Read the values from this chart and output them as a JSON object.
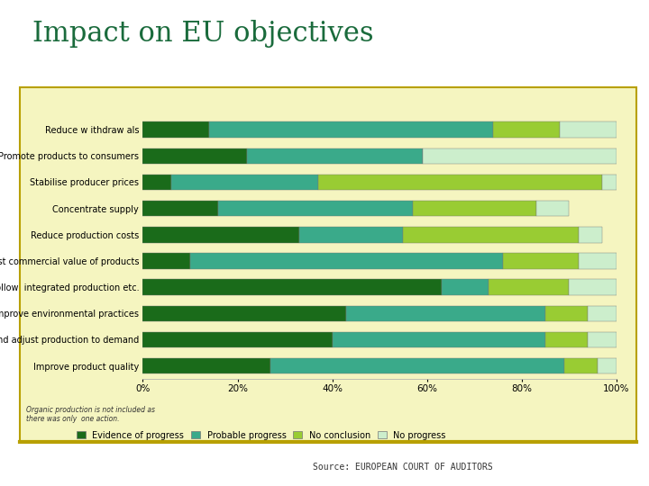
{
  "title": "Impact on EU objectives",
  "title_color": "#1a6b3c",
  "title_fontsize": 22,
  "source_text": "Source: EUROPEAN COURT OF AUDITORS",
  "chart_bg_color": "#f5f5c0",
  "outer_bg_color": "#ffffff",
  "border_color": "#b8a000",
  "categories": [
    "Reduce w ithdraw als",
    "Promote products to consumers",
    "Stabilise producer prices",
    "Concentrate supply",
    "Reduce production costs",
    "Boost commercial value of products",
    "Follow  integrated production etc.",
    "Improve environmental practices",
    "Plan and adjust production to demand",
    "Improve product quality"
  ],
  "series": {
    "Evidence of progress": {
      "color": "#1a6b1a",
      "values": [
        14,
        22,
        6,
        16,
        33,
        10,
        63,
        43,
        40,
        27
      ]
    },
    "Probable progress": {
      "color": "#3aaa8a",
      "values": [
        60,
        37,
        31,
        41,
        22,
        66,
        10,
        42,
        45,
        62
      ]
    },
    "No conclusion": {
      "color": "#99cc33",
      "values": [
        14,
        0,
        60,
        26,
        37,
        16,
        17,
        9,
        9,
        7
      ]
    },
    "No progress": {
      "color": "#cceecc",
      "values": [
        12,
        41,
        3,
        7,
        5,
        8,
        10,
        6,
        6,
        4
      ]
    }
  },
  "legend_labels": [
    "Evidence of progress",
    "Probable progress",
    "No conclusion",
    "No progress"
  ],
  "legend_colors": [
    "#1a6b1a",
    "#3aaa8a",
    "#99cc33",
    "#cceecc"
  ],
  "footnote": "Organic production is not included as\nthere was only  one action.",
  "xlim": [
    0,
    100
  ],
  "xticks": [
    0,
    20,
    40,
    60,
    80,
    100
  ],
  "xtick_labels": [
    "0%",
    "20%",
    "40%",
    "60%",
    "80%",
    "100%"
  ],
  "bar_height": 0.6
}
